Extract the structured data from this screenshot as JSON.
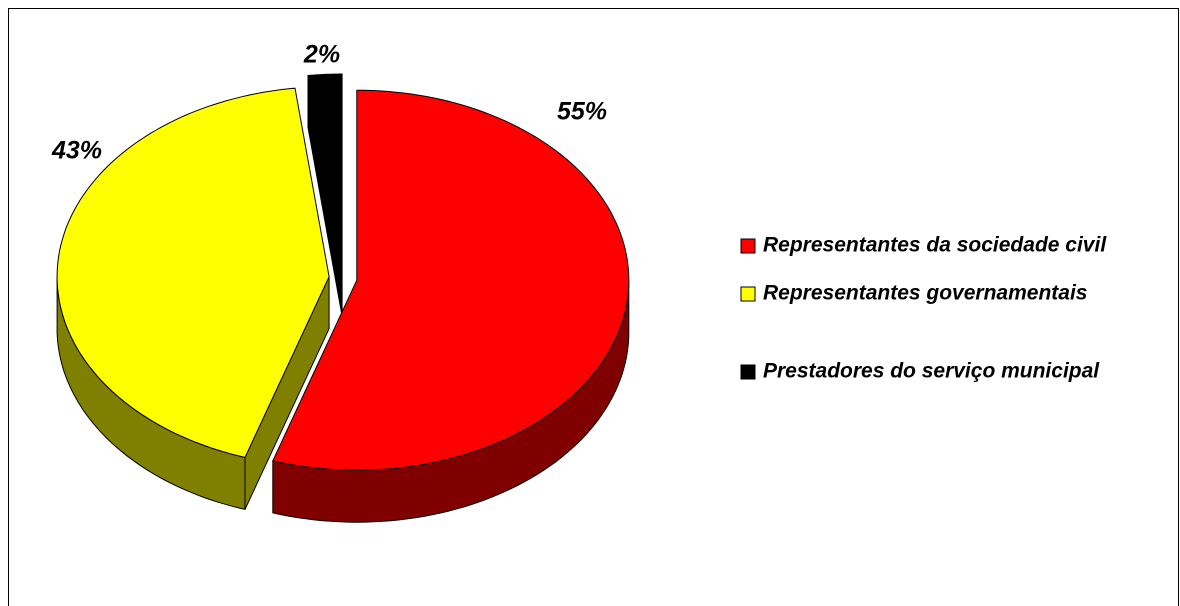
{
  "chart_data": {
    "type": "pie",
    "categories": [
      "Representantes da sociedade civil",
      "Representantes governamentais",
      "Prestadores do serviço municipal"
    ],
    "values": [
      55,
      43,
      2
    ],
    "value_labels": [
      "55%",
      "43%",
      "2%"
    ],
    "colors": [
      "#ff0000",
      "#ffff00",
      "#000000"
    ],
    "legend": "right"
  }
}
